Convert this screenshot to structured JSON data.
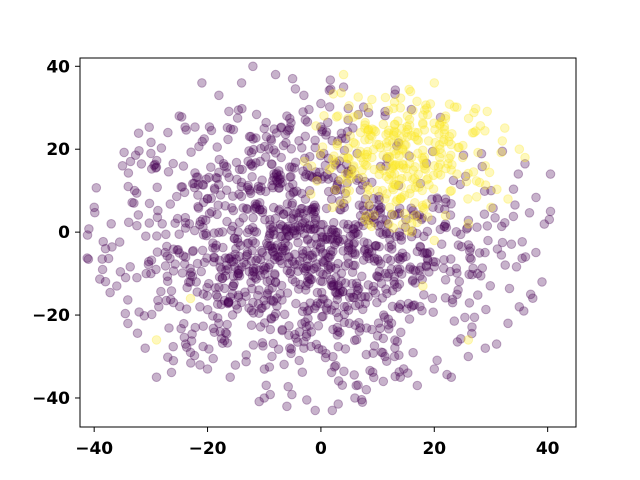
{
  "chart_data": {
    "type": "scatter",
    "title": "",
    "xlabel": "",
    "ylabel": "",
    "xlim": [
      -42.5,
      45
    ],
    "ylim": [
      -47,
      42
    ],
    "xticks": [
      -40,
      -20,
      0,
      20,
      40
    ],
    "yticks": [
      -40,
      -20,
      0,
      20,
      40
    ],
    "xtick_labels": [
      "−40",
      "−20",
      "0",
      "20",
      "40"
    ],
    "ytick_labels": [
      "−40",
      "−20",
      "0",
      "20",
      "40"
    ],
    "grid": false,
    "legend": "none",
    "marker_alpha": 0.3,
    "series": [
      {
        "color": "#440154",
        "center": [
          -3,
          -3
        ],
        "spread": [
          17,
          17
        ],
        "approx_count": 1300,
        "points": [
          [
            -40,
            6
          ],
          [
            -38,
            -4
          ],
          [
            -37,
            2
          ],
          [
            -36,
            -13
          ],
          [
            -35,
            16
          ],
          [
            -34,
            11
          ],
          [
            -33,
            7
          ],
          [
            -31,
            -28
          ],
          [
            -30,
            19
          ],
          [
            -29,
            -35
          ],
          [
            -27,
            24
          ],
          [
            -26,
            -17
          ],
          [
            -25,
            28
          ],
          [
            -23,
            -29
          ],
          [
            -21,
            36
          ],
          [
            -20,
            -33
          ],
          [
            -18,
            33
          ],
          [
            -16,
            -35
          ],
          [
            -14,
            36
          ],
          [
            -12,
            40
          ],
          [
            -10,
            -40
          ],
          [
            -8,
            38
          ],
          [
            -6,
            -42
          ],
          [
            -5,
            37
          ],
          [
            -3,
            33
          ],
          [
            -1,
            -43
          ],
          [
            0,
            31
          ],
          [
            2,
            -43
          ],
          [
            4,
            35
          ],
          [
            6,
            -40
          ],
          [
            8,
            -38
          ],
          [
            11,
            -36
          ],
          [
            14,
            -35
          ],
          [
            17,
            -37
          ],
          [
            20,
            -33
          ],
          [
            23,
            -35
          ],
          [
            26,
            -30
          ],
          [
            29,
            -28
          ],
          [
            31,
            -27
          ],
          [
            33,
            -22
          ],
          [
            35,
            -18
          ],
          [
            37,
            -15
          ],
          [
            39,
            -12
          ],
          [
            40.5,
            5
          ],
          [
            40.5,
            14
          ],
          [
            -5,
            -7
          ],
          [
            -9,
            3
          ],
          [
            2,
            -13
          ],
          [
            -15,
            -4
          ],
          [
            7,
            4
          ],
          [
            -2,
            10
          ],
          [
            12,
            -10
          ],
          [
            -20,
            8
          ],
          [
            -7,
            18
          ],
          [
            5,
            -22
          ],
          [
            -12,
            -17
          ],
          [
            18,
            -5
          ],
          [
            -25,
            -5
          ],
          [
            0,
            0
          ],
          [
            10,
            -25
          ],
          [
            -18,
            -22
          ],
          [
            22,
            8
          ],
          [
            -28,
            2
          ],
          [
            24,
            -15
          ],
          [
            -10,
            25
          ],
          [
            3,
            22
          ],
          [
            15,
            3
          ],
          [
            -22,
            -12
          ],
          [
            28,
            -5
          ],
          [
            -14,
            12
          ],
          [
            9,
            12
          ],
          [
            -3,
            -28
          ],
          [
            -8,
            -12
          ],
          [
            6,
            -8
          ],
          [
            -1,
            5
          ],
          [
            30,
            10
          ],
          [
            16,
            -18
          ],
          [
            -30,
            -10
          ],
          [
            -6,
            28
          ],
          [
            13,
            -30
          ]
        ]
      },
      {
        "color": "#fde725",
        "center": [
          14,
          18
        ],
        "spread": [
          8,
          8
        ],
        "approx_count": 320,
        "points": [
          [
            4,
            38
          ],
          [
            9,
            32
          ],
          [
            14,
            30
          ],
          [
            18,
            26
          ],
          [
            22,
            28
          ],
          [
            27,
            24
          ],
          [
            32,
            22
          ],
          [
            35,
            20
          ],
          [
            7,
            24
          ],
          [
            12,
            22
          ],
          [
            16,
            18
          ],
          [
            20,
            16
          ],
          [
            24,
            14
          ],
          [
            28,
            12
          ],
          [
            6,
            14
          ],
          [
            10,
            10
          ],
          [
            14,
            8
          ],
          [
            18,
            6
          ],
          [
            22,
            4
          ],
          [
            26,
            2
          ],
          [
            2,
            6
          ],
          [
            5,
            10
          ],
          [
            9,
            18
          ],
          [
            13,
            14
          ],
          [
            17,
            12
          ],
          [
            21,
            20
          ],
          [
            25,
            18
          ],
          [
            29,
            16
          ],
          [
            11,
            26
          ],
          [
            15,
            24
          ],
          [
            19,
            22
          ],
          [
            23,
            10
          ],
          [
            4,
            18
          ],
          [
            8,
            4
          ],
          [
            12,
            2
          ],
          [
            16,
            0
          ],
          [
            20,
            -2
          ],
          [
            30,
            6
          ],
          [
            33,
            8
          ],
          [
            -29,
            -26
          ],
          [
            -23,
            -16
          ],
          [
            18,
            -13
          ],
          [
            26,
            -26
          ],
          [
            20,
            36
          ],
          [
            36,
            18
          ],
          [
            3,
            28
          ]
        ]
      }
    ]
  }
}
